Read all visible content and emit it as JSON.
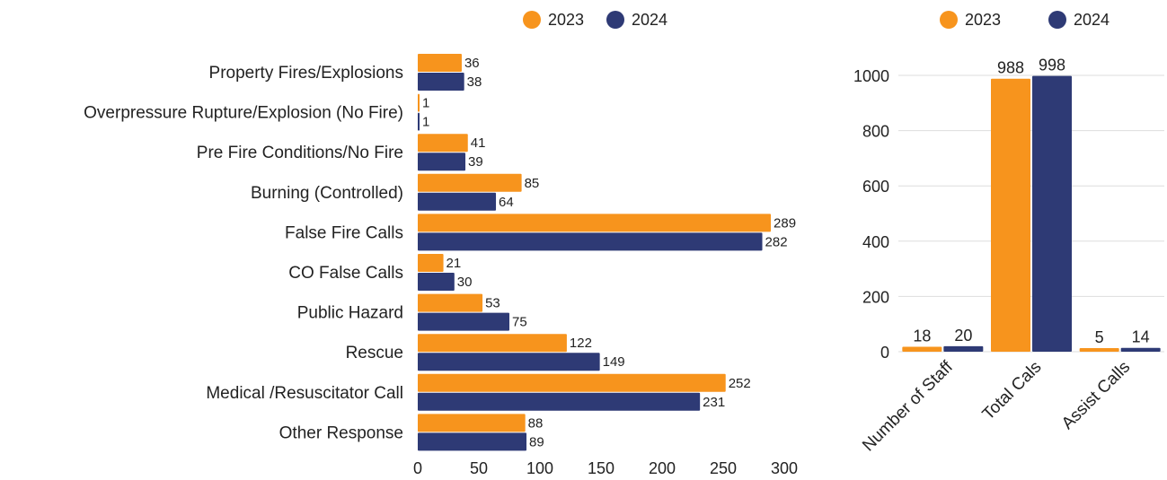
{
  "colors": {
    "2023": "#F7941D",
    "2024": "#2E3A75",
    "grid": "#DDDDDD",
    "text": "#222222"
  },
  "chart_data": [
    {
      "type": "bar",
      "orientation": "horizontal",
      "categories": [
        "Property Fires/Explosions",
        "Overpressure Rupture/Explosion (No Fire)",
        "Pre Fire Conditions/No Fire",
        "Burning (Controlled)",
        "False Fire Calls",
        "CO False Calls",
        "Public Hazard",
        "Rescue",
        "Medical /Resuscitator Call",
        "Other Response"
      ],
      "series": [
        {
          "name": "2023",
          "values": [
            36,
            1,
            41,
            85,
            289,
            21,
            53,
            122,
            252,
            88
          ]
        },
        {
          "name": "2024",
          "values": [
            38,
            1,
            39,
            64,
            282,
            30,
            75,
            149,
            231,
            89
          ]
        }
      ],
      "xlim": [
        0,
        300
      ],
      "xticks": [
        0,
        50,
        100,
        150,
        200,
        250,
        300
      ],
      "legend": "top-center",
      "grid": false
    },
    {
      "type": "bar",
      "orientation": "vertical",
      "categories": [
        "Number of Staff",
        "Total Cals",
        "Assist Calls"
      ],
      "series": [
        {
          "name": "2023",
          "values": [
            18,
            988,
            5
          ]
        },
        {
          "name": "2024",
          "values": [
            20,
            998,
            14
          ]
        }
      ],
      "ylim": [
        0,
        1000
      ],
      "yticks": [
        0,
        200,
        400,
        600,
        800,
        1000
      ],
      "legend": "top-center",
      "grid": true
    }
  ]
}
